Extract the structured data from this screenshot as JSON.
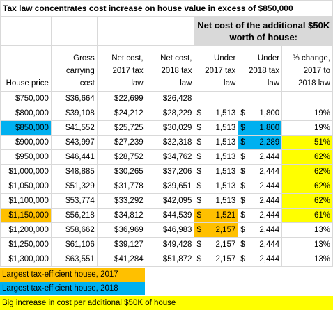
{
  "title": "Tax law concentrates cost increase on house value in excess of $850,000",
  "group_header": "Net cost of the additional $50K worth of house:",
  "columns": [
    "House price",
    "Gross carrying cost",
    "Net cost, 2017 tax law",
    "Net cost, 2018 tax law",
    "Under 2017 tax law",
    "Under 2018 tax law",
    "% change, 2017 to 2018 law"
  ],
  "currency_symbol": "$",
  "rows": [
    {
      "price": "$750,000",
      "gross": "$36,664",
      "net2017": "$22,699",
      "net2018": "$26,428",
      "u2017": "",
      "u2018": "",
      "pct": ""
    },
    {
      "price": "$800,000",
      "gross": "$39,108",
      "net2017": "$24,212",
      "net2018": "$28,229",
      "u2017": "1,513",
      "u2018": "1,800",
      "pct": "19%"
    },
    {
      "price": "$850,000",
      "gross": "$41,552",
      "net2017": "$25,725",
      "net2018": "$30,029",
      "u2017": "1,513",
      "u2018": "1,800",
      "pct": "19%"
    },
    {
      "price": "$900,000",
      "gross": "$43,997",
      "net2017": "$27,239",
      "net2018": "$32,318",
      "u2017": "1,513",
      "u2018": "2,289",
      "pct": "51%"
    },
    {
      "price": "$950,000",
      "gross": "$46,441",
      "net2017": "$28,752",
      "net2018": "$34,762",
      "u2017": "1,513",
      "u2018": "2,444",
      "pct": "62%"
    },
    {
      "price": "$1,000,000",
      "gross": "$48,885",
      "net2017": "$30,265",
      "net2018": "$37,206",
      "u2017": "1,513",
      "u2018": "2,444",
      "pct": "62%"
    },
    {
      "price": "$1,050,000",
      "gross": "$51,329",
      "net2017": "$31,778",
      "net2018": "$39,651",
      "u2017": "1,513",
      "u2018": "2,444",
      "pct": "62%"
    },
    {
      "price": "$1,100,000",
      "gross": "$53,774",
      "net2017": "$33,292",
      "net2018": "$42,095",
      "u2017": "1,513",
      "u2018": "2,444",
      "pct": "62%"
    },
    {
      "price": "$1,150,000",
      "gross": "$56,218",
      "net2017": "$34,812",
      "net2018": "$44,539",
      "u2017": "1,521",
      "u2018": "2,444",
      "pct": "61%"
    },
    {
      "price": "$1,200,000",
      "gross": "$58,662",
      "net2017": "$36,969",
      "net2018": "$46,983",
      "u2017": "2,157",
      "u2018": "2,444",
      "pct": "13%"
    },
    {
      "price": "$1,250,000",
      "gross": "$61,106",
      "net2017": "$39,127",
      "net2018": "$49,428",
      "u2017": "2,157",
      "u2018": "2,444",
      "pct": "13%"
    },
    {
      "price": "$1,300,000",
      "gross": "$63,551",
      "net2017": "$41,284",
      "net2018": "$51,872",
      "u2017": "2,157",
      "u2018": "2,444",
      "pct": "13%"
    }
  ],
  "legend": [
    {
      "label": "Largest tax-efficient house, 2017",
      "color": "#ffc000"
    },
    {
      "label": "Largest tax-efficient house, 2018",
      "color": "#00b0f0"
    },
    {
      "label": "Big increase in cost per additional $50K of house",
      "color": "#ffff00"
    }
  ],
  "highlight_colors": {
    "orange": "#ffc000",
    "blue": "#00b0f0",
    "yellow": "#ffff00",
    "header_gray": "#d9d9d9"
  }
}
